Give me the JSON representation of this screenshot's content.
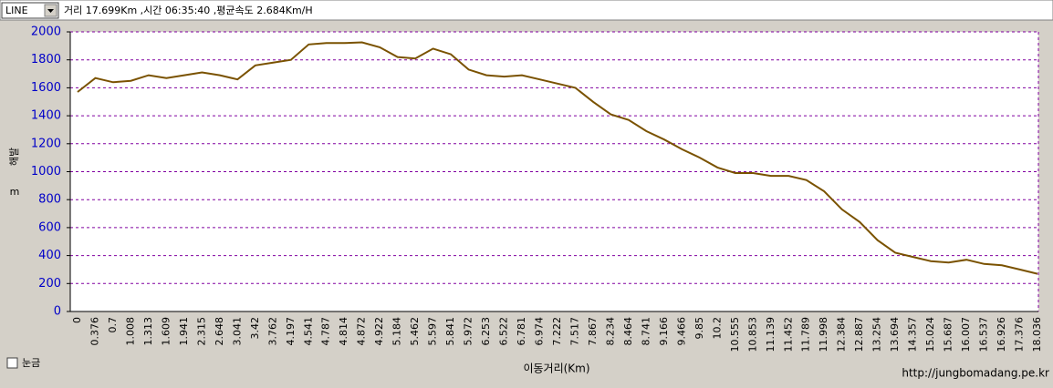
{
  "toolbar": {
    "select": "LINE",
    "summary": "거리 17.699Km ,시간 06:35:40 ,평균속도 2.684Km/H"
  },
  "chart_data": {
    "type": "line",
    "x_label": "이동거리(Km)",
    "y_label": "해발",
    "y_unit": "m",
    "categories": [
      "0",
      "0.376",
      "0.7",
      "1.008",
      "1.313",
      "1.609",
      "1.941",
      "2.315",
      "2.648",
      "3.041",
      "3.42",
      "3.762",
      "4.197",
      "4.541",
      "4.787",
      "4.814",
      "4.872",
      "4.922",
      "5.184",
      "5.462",
      "5.597",
      "5.841",
      "5.972",
      "6.253",
      "6.522",
      "6.781",
      "6.974",
      "7.222",
      "7.517",
      "7.867",
      "8.234",
      "8.464",
      "8.741",
      "9.166",
      "9.466",
      "9.85",
      "10.2",
      "10.555",
      "10.853",
      "11.139",
      "11.452",
      "11.789",
      "11.998",
      "12.384",
      "12.887",
      "13.254",
      "13.694",
      "14.357",
      "15.024",
      "15.687",
      "16.007",
      "16.537",
      "16.926",
      "17.376",
      "18.036"
    ],
    "values": [
      1570,
      1670,
      1640,
      1650,
      1690,
      1670,
      1690,
      1710,
      1690,
      1660,
      1760,
      1780,
      1800,
      1910,
      1920,
      1920,
      1925,
      1890,
      1820,
      1810,
      1880,
      1840,
      1730,
      1690,
      1680,
      1690,
      1660,
      1630,
      1600,
      1500,
      1410,
      1370,
      1290,
      1230,
      1160,
      1100,
      1030,
      990,
      990,
      970,
      970,
      940,
      860,
      730,
      640,
      510,
      420,
      390,
      360,
      350,
      370,
      340,
      330,
      300,
      270
    ],
    "color": "#7a5200",
    "ylim": [
      0,
      2000
    ],
    "yticks": [
      0,
      200,
      400,
      600,
      800,
      1000,
      1200,
      1400,
      1600,
      1800,
      2000
    ],
    "grid": true,
    "grid_color": "#8000a0",
    "tick_label_color": "#0000c8"
  },
  "checkbox_label": "눈금",
  "footer": "http://jungbomadang.pe.kr"
}
